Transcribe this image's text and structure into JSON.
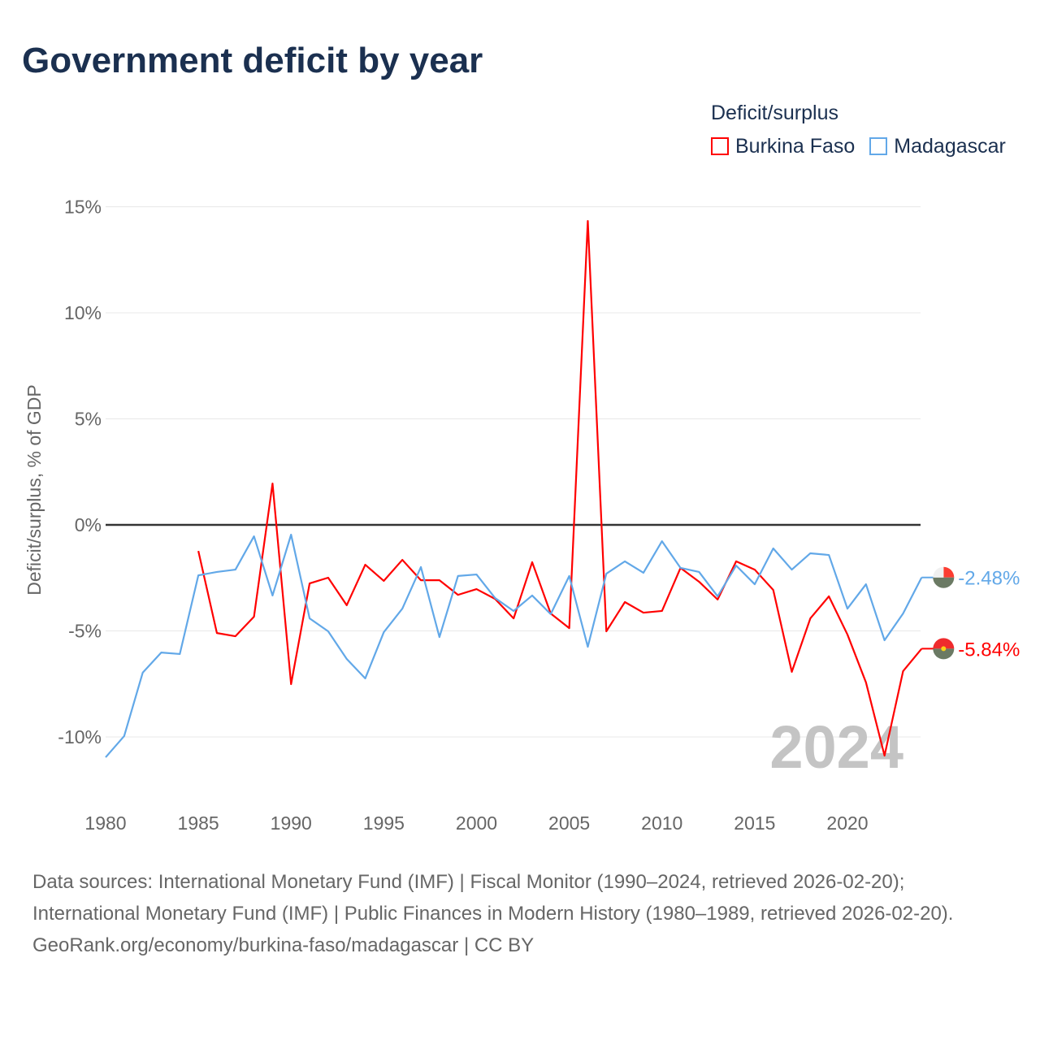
{
  "title": "Government deficit by year",
  "legend": {
    "title": "Deficit/surplus",
    "items": [
      {
        "name": "Burkina Faso",
        "color": "#ff0000"
      },
      {
        "name": "Madagascar",
        "color": "#62a8e8"
      }
    ]
  },
  "chart_data": {
    "type": "line",
    "title": "Government deficit by year",
    "xlabel": "",
    "ylabel": "Deficit/surplus, % of GDP",
    "xlim": [
      1980,
      2024
    ],
    "ylim": [
      -12.5,
      15.5
    ],
    "yticks": [
      15,
      10,
      5,
      0,
      -5,
      -10
    ],
    "ytick_labels": [
      "15%",
      "10%",
      "5%",
      "0%",
      "-5%",
      "-10%"
    ],
    "xticks": [
      1980,
      1985,
      1990,
      1995,
      2000,
      2005,
      2010,
      2015,
      2020
    ],
    "xtick_labels": [
      "1980",
      "1985",
      "1990",
      "1995",
      "2000",
      "2005",
      "2010",
      "2015",
      "2020"
    ],
    "watermark_year": "2024",
    "series": [
      {
        "name": "Burkina Faso",
        "color": "#ff0000",
        "end_label": "-5.84%",
        "x": [
          1985,
          1986,
          1987,
          1988,
          1989,
          1990,
          1991,
          1992,
          1993,
          1994,
          1995,
          1996,
          1997,
          1998,
          1999,
          2000,
          2001,
          2002,
          2003,
          2004,
          2005,
          2006,
          2007,
          2008,
          2009,
          2010,
          2011,
          2012,
          2013,
          2014,
          2015,
          2016,
          2017,
          2018,
          2019,
          2020,
          2021,
          2022,
          2023,
          2024
        ],
        "y": [
          -1.23,
          -5.1,
          -5.25,
          -4.33,
          1.95,
          -7.51,
          -2.76,
          -2.49,
          -3.79,
          -1.88,
          -2.64,
          -1.65,
          -2.61,
          -2.61,
          -3.3,
          -3.03,
          -3.49,
          -4.41,
          -1.76,
          -4.18,
          -4.87,
          14.33,
          -5.02,
          -3.64,
          -4.14,
          -4.06,
          -2.03,
          -2.68,
          -3.52,
          -1.72,
          -2.11,
          -3.07,
          -6.93,
          -4.41,
          -3.37,
          -5.17,
          -7.43,
          -10.88,
          -6.9,
          -5.84
        ]
      },
      {
        "name": "Madagascar",
        "color": "#62a8e8",
        "end_label": "-2.48%",
        "x": [
          1980,
          1981,
          1982,
          1983,
          1984,
          1985,
          1986,
          1987,
          1988,
          1989,
          1990,
          1991,
          1992,
          1993,
          1994,
          1995,
          1996,
          1997,
          1998,
          1999,
          2000,
          2001,
          2002,
          2003,
          2004,
          2005,
          2006,
          2007,
          2008,
          2009,
          2010,
          2011,
          2012,
          2013,
          2014,
          2015,
          2016,
          2017,
          2018,
          2019,
          2020,
          2021,
          2022,
          2023,
          2024
        ],
        "y": [
          -10.96,
          -9.96,
          -6.97,
          -6.02,
          -6.09,
          -2.38,
          -2.22,
          -2.11,
          -0.54,
          -3.33,
          -0.46,
          -4.41,
          -5.02,
          -6.32,
          -7.24,
          -5.06,
          -3.95,
          -1.99,
          -5.29,
          -2.41,
          -2.34,
          -3.45,
          -4.06,
          -3.33,
          -4.21,
          -2.41,
          -5.75,
          -2.3,
          -1.72,
          -2.26,
          -0.77,
          -2.03,
          -2.22,
          -3.37,
          -1.92,
          -2.8,
          -1.11,
          -2.11,
          -1.34,
          -1.42,
          -3.95,
          -2.8,
          -5.44,
          -4.18,
          -2.48
        ]
      }
    ]
  },
  "footer": {
    "sources": "Data sources: International Monetary Fund (IMF) | Fiscal Monitor (1990–2024, retrieved 2026-02-20); International Monetary Fund (IMF) | Public Finances in Modern History (1980–1989, retrieved 2026-02-20).",
    "link": "GeoRank.org/economy/burkina-faso/madagascar | CC BY"
  }
}
